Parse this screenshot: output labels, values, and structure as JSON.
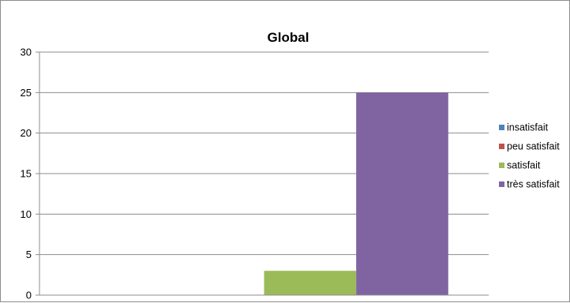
{
  "chart_data": {
    "type": "bar",
    "title": "Global",
    "xlabel": "",
    "ylabel": "",
    "ylim": [
      0,
      30
    ],
    "yticks": [
      0,
      5,
      10,
      15,
      20,
      25,
      30
    ],
    "grid": true,
    "legend_position": "right",
    "categories": [
      ""
    ],
    "series": [
      {
        "name": "insatisfait",
        "values": [
          0
        ],
        "color": "#4f81bd"
      },
      {
        "name": "peu satisfait",
        "values": [
          0
        ],
        "color": "#c0504d"
      },
      {
        "name": "satisfait",
        "values": [
          3
        ],
        "color": "#9bbb59"
      },
      {
        "name": "très satisfait",
        "values": [
          25
        ],
        "color": "#8064a2"
      }
    ]
  }
}
